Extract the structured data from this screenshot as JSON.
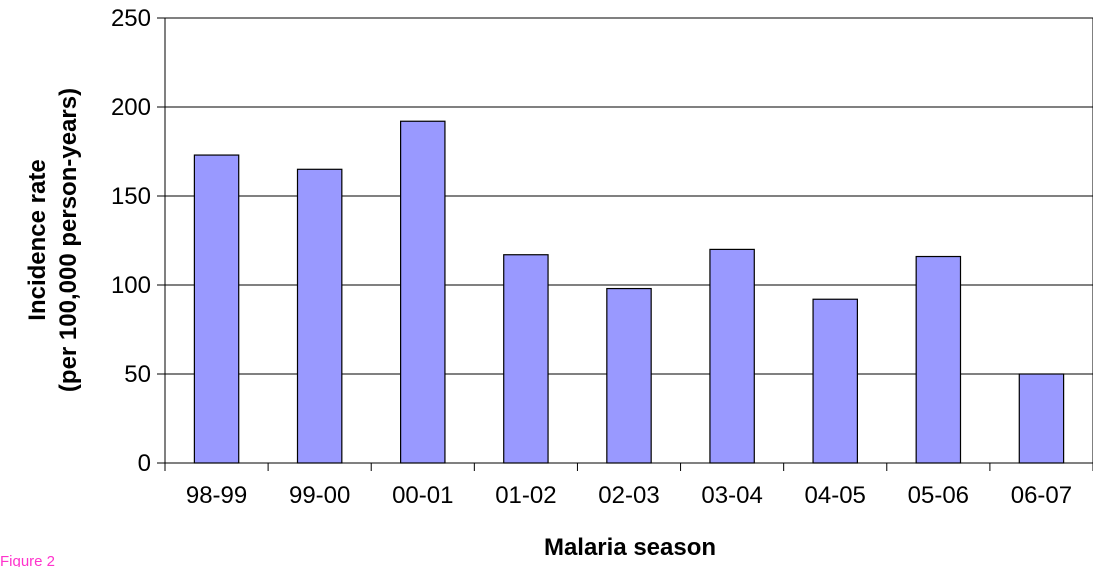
{
  "caption": "Figure 2",
  "colors": {
    "bar_fill": "#9999ff",
    "bar_stroke": "#000000",
    "grid": "#000000",
    "caption": "#ff33cc"
  },
  "chart_data": {
    "type": "bar",
    "title": "",
    "xlabel": "Malaria season",
    "ylabel_lines": [
      "Incidence rate",
      "(per 100,000 person-years)"
    ],
    "categories": [
      "98-99",
      "99-00",
      "00-01",
      "01-02",
      "02-03",
      "03-04",
      "04-05",
      "05-06",
      "06-07"
    ],
    "values": [
      173,
      165,
      192,
      117,
      98,
      120,
      92,
      116,
      50
    ],
    "ylim": [
      0,
      250
    ],
    "yticks": [
      0,
      50,
      100,
      150,
      200,
      250
    ],
    "grid": true,
    "legend": "none"
  }
}
